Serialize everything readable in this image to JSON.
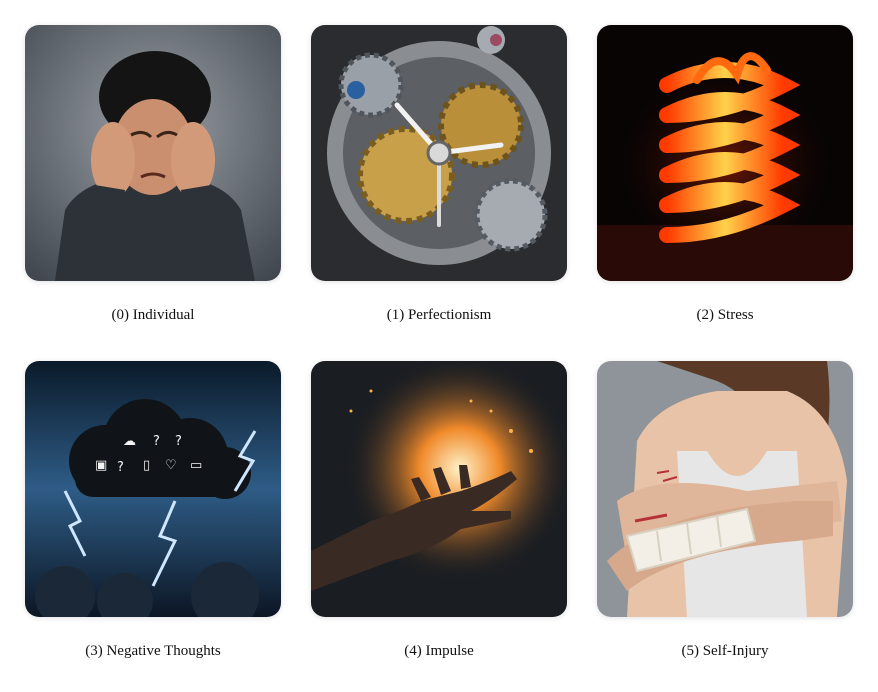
{
  "grid": {
    "items": [
      {
        "label": "(0) Individual",
        "icon": "distressed-person-illustration"
      },
      {
        "label": "(1) Perfectionism",
        "icon": "clockwork-gears-illustration"
      },
      {
        "label": "(2) Stress",
        "icon": "flaming-spring-illustration"
      },
      {
        "label": "(3) Negative Thoughts",
        "icon": "storm-cloud-illustration"
      },
      {
        "label": "(4) Impulse",
        "icon": "burning-hand-illustration"
      },
      {
        "label": "(5) Self-Injury",
        "icon": "bandaged-arm-illustration"
      }
    ]
  }
}
